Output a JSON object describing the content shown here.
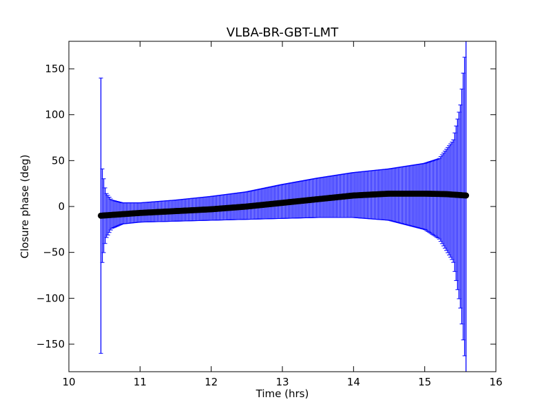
{
  "chart_data": {
    "type": "scatter",
    "title": "VLBA-BR-GBT-LMT",
    "xlabel": "Time (hrs)",
    "ylabel": "Closure phase (deg)",
    "xlim": [
      10,
      16
    ],
    "ylim": [
      -180,
      180
    ],
    "xticks": [
      10,
      11,
      12,
      13,
      14,
      15,
      16
    ],
    "xtick_labels": [
      "10",
      "11",
      "12",
      "13",
      "14",
      "15",
      "16"
    ],
    "yticks": [
      -150,
      -100,
      -50,
      0,
      50,
      100,
      150
    ],
    "ytick_labels": [
      "−150",
      "−100",
      "−50",
      "0",
      "50",
      "100",
      "150"
    ],
    "grid": false,
    "series": [
      {
        "kind": "errorbar",
        "x_start": 10.45,
        "x_end": 15.58,
        "point_count": 260,
        "marker_color": "#000000",
        "errorbar_color": "#0000ff",
        "phase_curve": [
          [
            10.45,
            -10
          ],
          [
            11.0,
            -7
          ],
          [
            11.5,
            -5
          ],
          [
            12.0,
            -3
          ],
          [
            12.5,
            0
          ],
          [
            13.0,
            4
          ],
          [
            13.5,
            8
          ],
          [
            14.0,
            12
          ],
          [
            14.5,
            14
          ],
          [
            15.0,
            14
          ],
          [
            15.3,
            13.5
          ],
          [
            15.58,
            12
          ]
        ],
        "upper_error_envelope": [
          [
            10.45,
            140
          ],
          [
            10.47,
            40
          ],
          [
            10.52,
            15
          ],
          [
            10.6,
            7
          ],
          [
            10.75,
            4
          ],
          [
            11.0,
            4
          ],
          [
            11.5,
            7
          ],
          [
            12.0,
            11
          ],
          [
            12.5,
            16
          ],
          [
            13.0,
            24
          ],
          [
            13.5,
            31
          ],
          [
            14.0,
            37
          ],
          [
            14.5,
            41
          ],
          [
            15.0,
            47
          ],
          [
            15.2,
            52
          ],
          [
            15.4,
            72
          ],
          [
            15.5,
            110
          ],
          [
            15.58,
            180
          ]
        ],
        "lower_error_envelope": [
          [
            10.45,
            -160
          ],
          [
            10.47,
            -60
          ],
          [
            10.52,
            -35
          ],
          [
            10.6,
            -24
          ],
          [
            10.75,
            -19
          ],
          [
            11.0,
            -17
          ],
          [
            11.5,
            -16
          ],
          [
            12.0,
            -15
          ],
          [
            12.5,
            -14
          ],
          [
            13.0,
            -13
          ],
          [
            13.5,
            -12
          ],
          [
            14.0,
            -12
          ],
          [
            14.5,
            -15
          ],
          [
            15.0,
            -25
          ],
          [
            15.2,
            -35
          ],
          [
            15.4,
            -60
          ],
          [
            15.5,
            -110
          ],
          [
            15.58,
            -180
          ]
        ]
      }
    ]
  }
}
